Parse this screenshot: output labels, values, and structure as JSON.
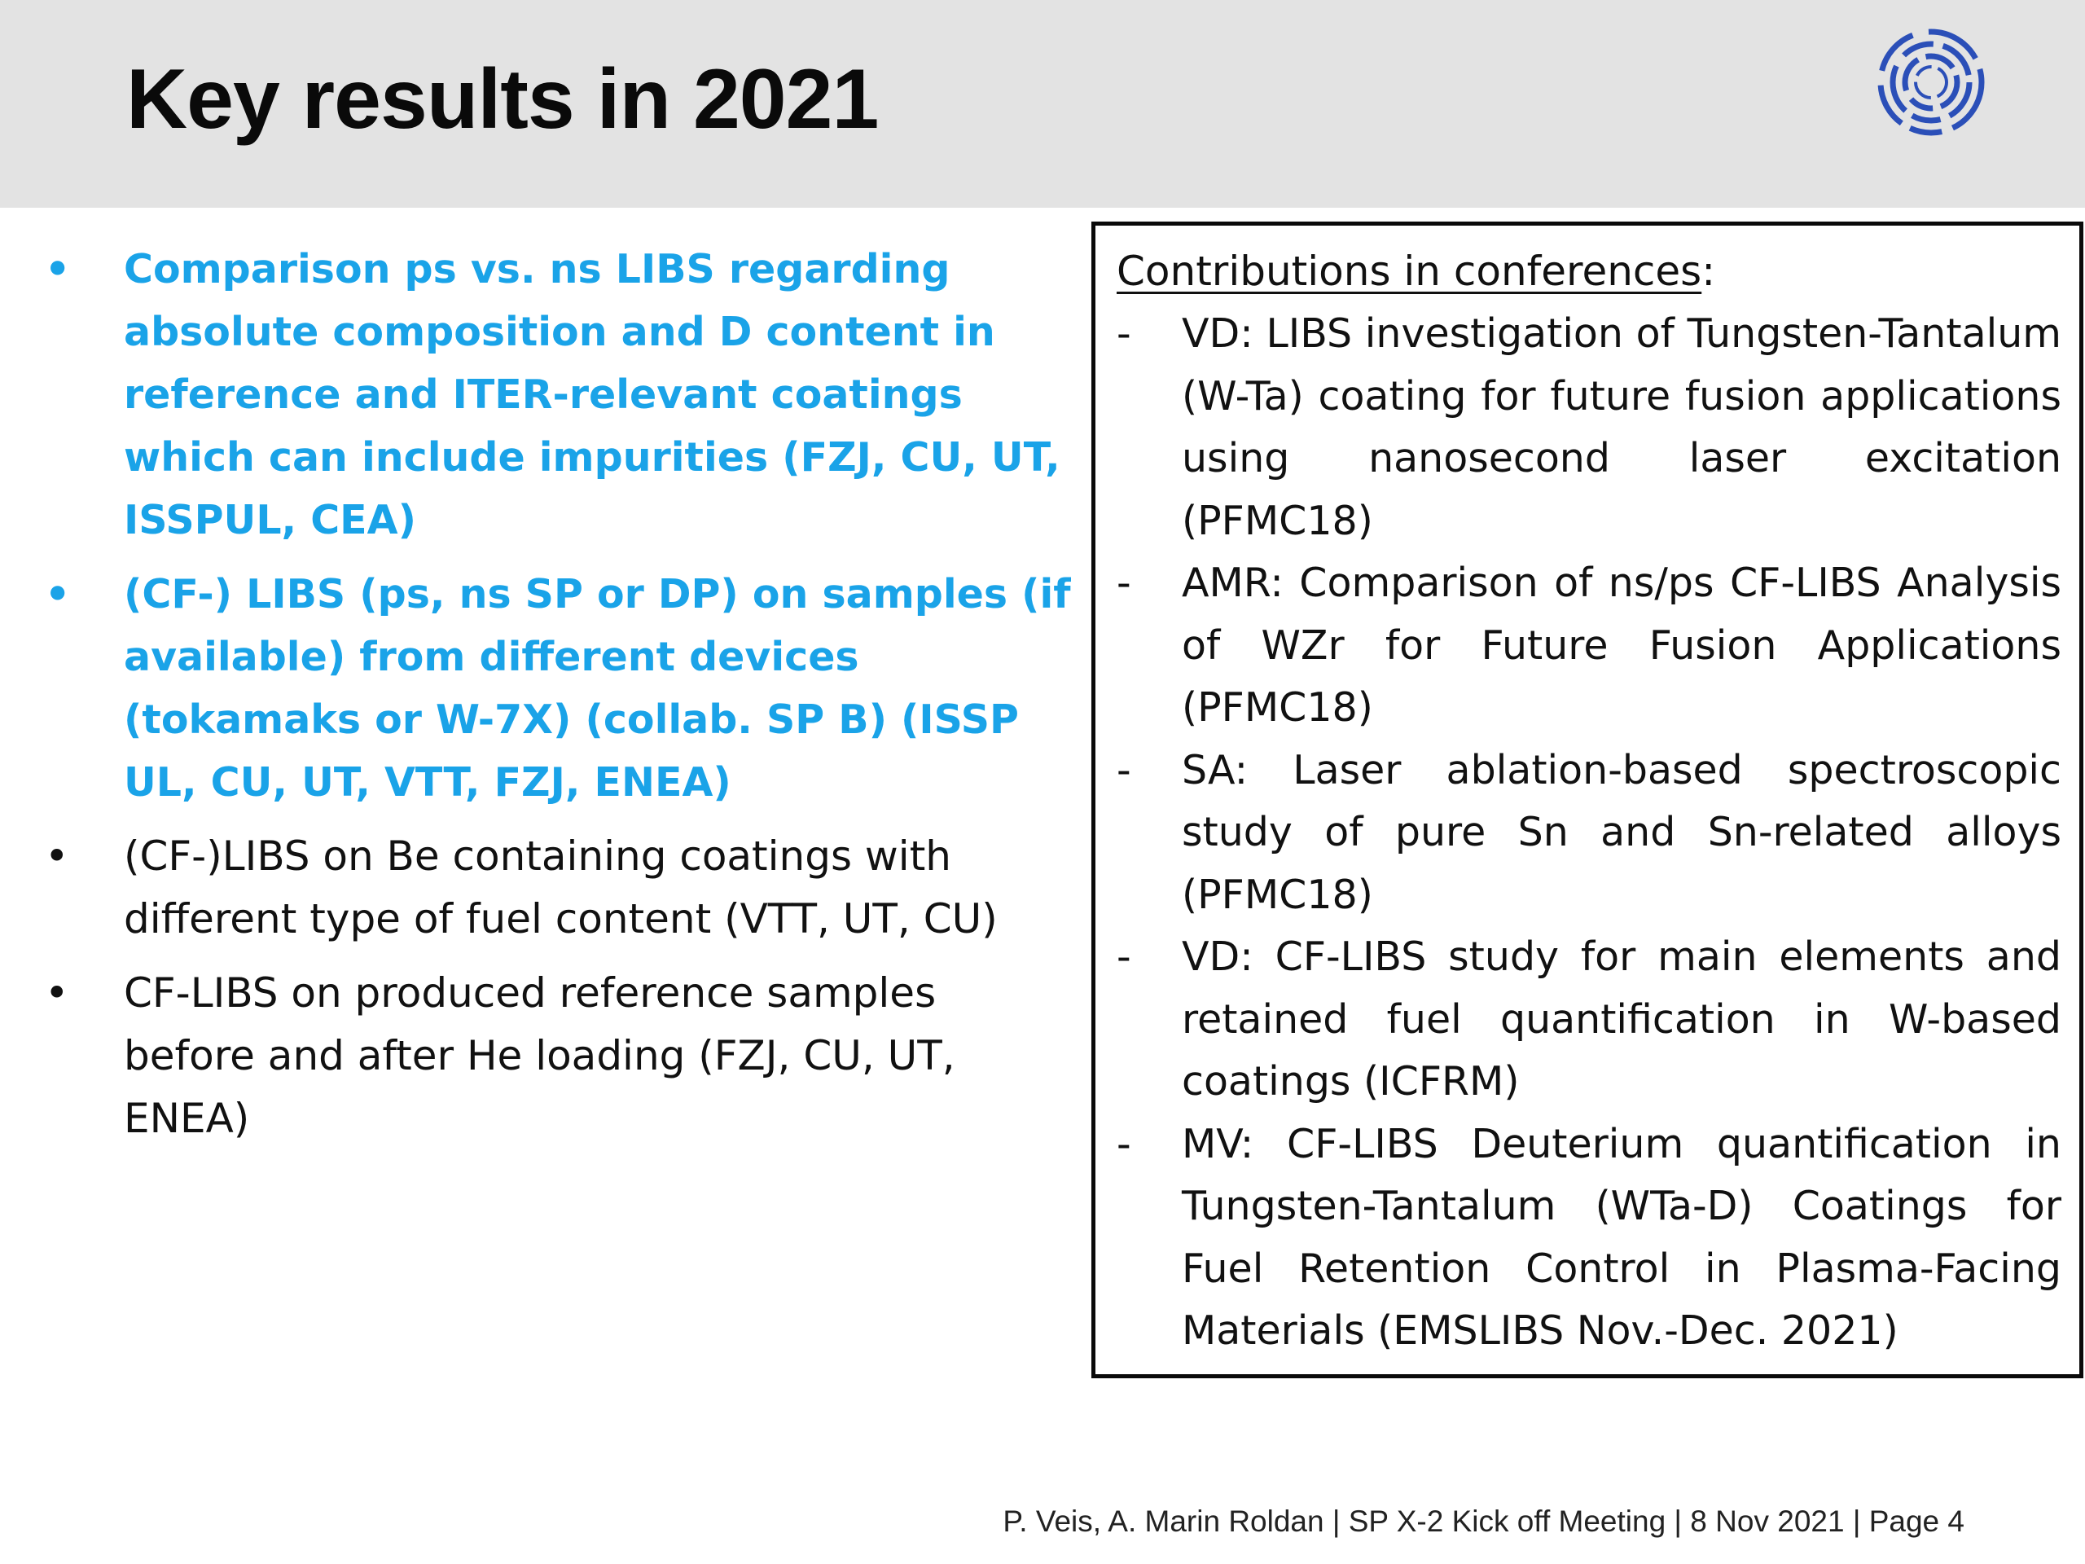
{
  "slide": {
    "title": "Key results in 2021",
    "logo_icon": "fusion-ring-logo-icon",
    "accent_color": "#1aa3e8"
  },
  "bullets": [
    {
      "marker": "•",
      "text": "Comparison ps vs. ns LIBS regarding absolute composition and D content in reference and ITER-relevant coatings which can include impurities (FZJ, CU, UT, ISSPUL, CEA)",
      "highlighted": true
    },
    {
      "marker": "•",
      "text": "(CF-) LIBS (ps, ns SP or DP) on samples (if available) from different devices (tokamaks or W-7X) (collab. SP B) (ISSP UL, CU, UT, VTT, FZJ, ENEA)",
      "highlighted": true
    },
    {
      "marker": "•",
      "text": "(CF-)LIBS on Be containing coatings with different type of fuel content (VTT, UT, CU)",
      "highlighted": false
    },
    {
      "marker": "•",
      "text": "CF-LIBS on produced reference samples before and after He loading (FZJ, CU, UT, ENEA)",
      "highlighted": false
    }
  ],
  "conferences": {
    "heading": "Contributions in conferences",
    "heading_suffix": ":",
    "items": [
      {
        "marker": "-",
        "text": "VD: LIBS investigation of Tungsten-Tantalum (W-Ta) coating for future fusion applications using nanosecond laser excitation (PFMC18)"
      },
      {
        "marker": "-",
        "text": "AMR: Comparison of ns/ps CF-LIBS Analysis of WZr for Future Fusion Applications (PFMC18)"
      },
      {
        "marker": "-",
        "text": "SA: Laser ablation-based spectroscopic study of pure Sn and Sn-related alloys (PFMC18)"
      },
      {
        "marker": "-",
        "text": "VD: CF-LIBS study for main elements and retained fuel quantification in W-based coatings (ICFRM)"
      },
      {
        "marker": "-",
        "text": "MV: CF-LIBS Deuterium quantification in Tungsten-Tantalum (WTa-D) Coatings for Fuel Retention Control in Plasma-Facing Materials (EMSLIBS Nov.-Dec. 2021)"
      }
    ]
  },
  "footer": {
    "text": "P. Veis, A. Marin Roldan | SP X-2 Kick off Meeting | 8 Nov 2021 | Page 4"
  }
}
